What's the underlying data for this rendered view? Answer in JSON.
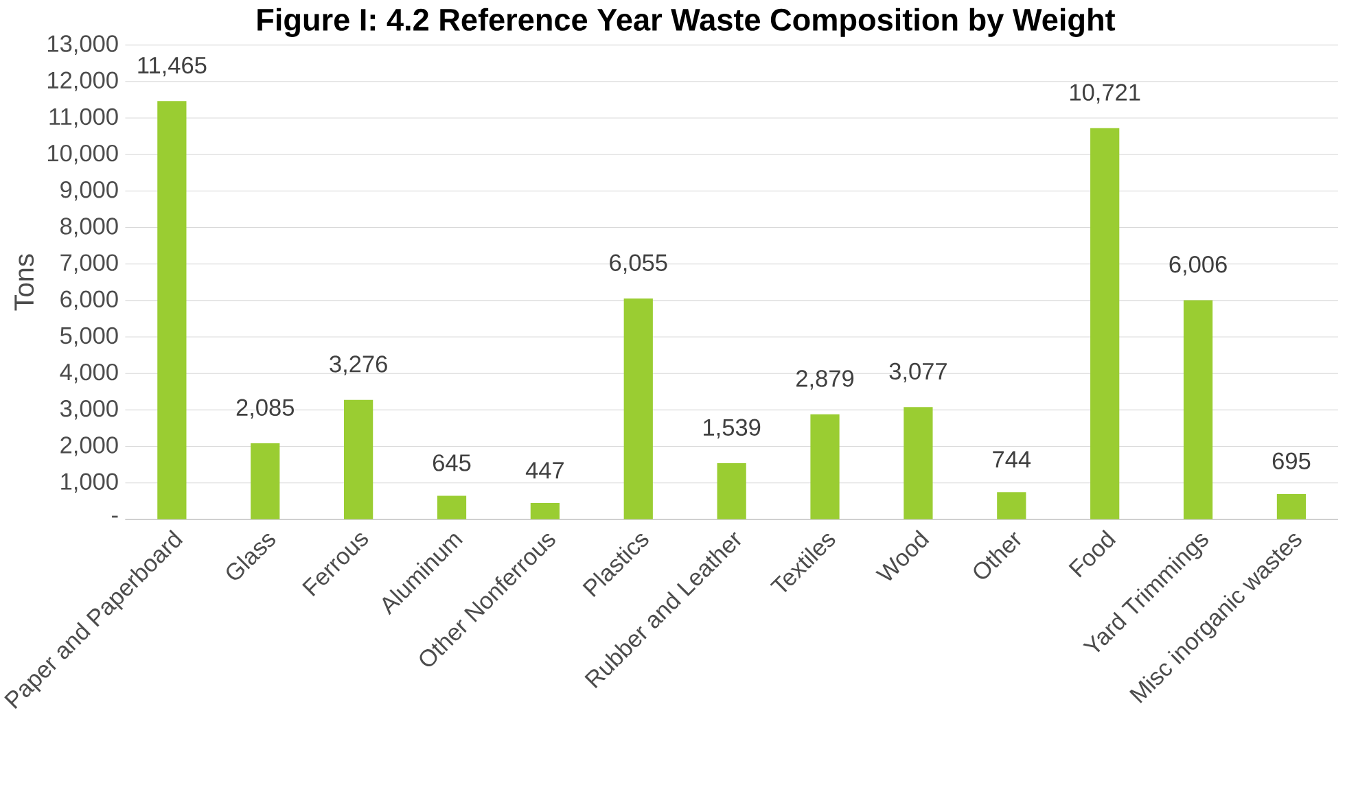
{
  "chart_data": {
    "type": "bar",
    "title": "Figure I: 4.2 Reference Year Waste Composition by Weight",
    "ylabel": "Tons",
    "categories": [
      "Paper and Paperboard",
      "Glass",
      "Ferrous",
      "Aluminum",
      "Other Nonferrous",
      "Plastics",
      "Rubber and Leather",
      "Textiles",
      "Wood",
      "Other",
      "Food",
      "Yard Trimmings",
      "Misc inorganic wastes"
    ],
    "values": [
      11465,
      2085,
      3276,
      645,
      447,
      6055,
      1539,
      2879,
      3077,
      744,
      10721,
      6006,
      695
    ],
    "value_labels": [
      "11,465",
      "2,085",
      "3,276",
      "645",
      "447",
      "6,055",
      "1,539",
      "2,879",
      "3,077",
      "744",
      "10,721",
      "6,006",
      "695"
    ],
    "color": "#9acd32",
    "ylim": [
      0,
      13000
    ],
    "yticks": [
      {
        "value": 0,
        "label": "-"
      },
      {
        "value": 1000,
        "label": "1,000"
      },
      {
        "value": 2000,
        "label": "2,000"
      },
      {
        "value": 3000,
        "label": "3,000"
      },
      {
        "value": 4000,
        "label": "4,000"
      },
      {
        "value": 5000,
        "label": "5,000"
      },
      {
        "value": 6000,
        "label": "6,000"
      },
      {
        "value": 7000,
        "label": "7,000"
      },
      {
        "value": 8000,
        "label": "8,000"
      },
      {
        "value": 9000,
        "label": "9,000"
      },
      {
        "value": 10000,
        "label": "10,000"
      },
      {
        "value": 11000,
        "label": "11,000"
      },
      {
        "value": 12000,
        "label": "12,000"
      },
      {
        "value": 13000,
        "label": "13,000"
      }
    ],
    "grid": "y"
  }
}
